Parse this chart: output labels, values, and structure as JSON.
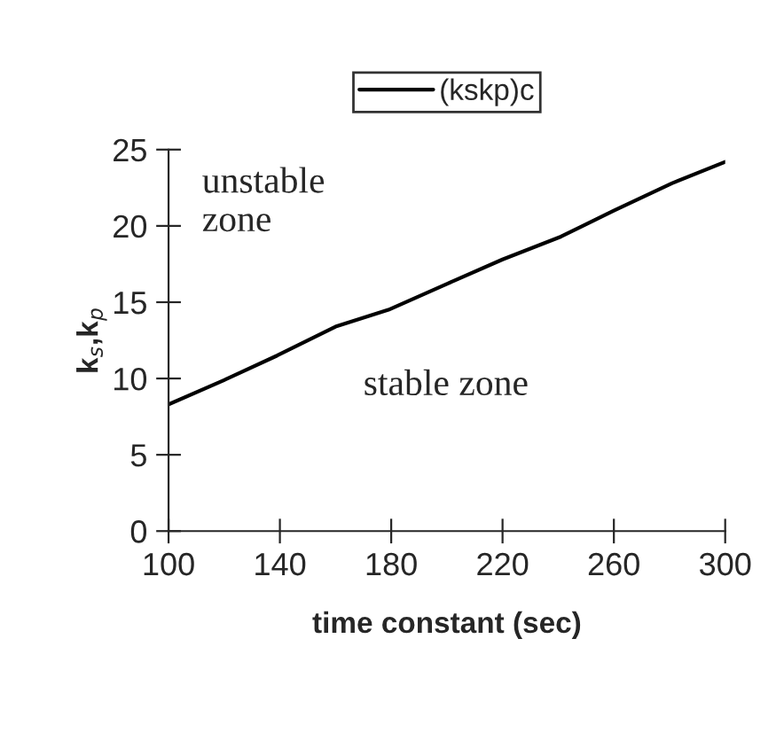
{
  "chart_data": {
    "type": "line",
    "xlabel": "time constant (sec)",
    "ylabel": "k$_{s}$,k$_{p}$",
    "x": [
      100,
      120,
      139,
      160,
      179,
      200,
      220,
      241,
      260,
      281,
      300
    ],
    "series": [
      {
        "name": "(kskp)c",
        "color": "#000000",
        "values": [
          8.3,
          9.9,
          11.5,
          13.4,
          14.5,
          16.2,
          17.8,
          19.3,
          21.0,
          22.8,
          24.2
        ]
      }
    ],
    "xlim": [
      100,
      300
    ],
    "xticks": [
      100,
      140,
      180,
      220,
      260,
      300
    ],
    "ylim": [
      0,
      25
    ],
    "yticks": [
      0,
      5,
      10,
      15,
      20,
      25
    ],
    "annotations": [
      "unstable\nzone",
      "stable zone"
    ],
    "grid": false,
    "legend": "top",
    "marker": "none",
    "line_style": "solid"
  }
}
